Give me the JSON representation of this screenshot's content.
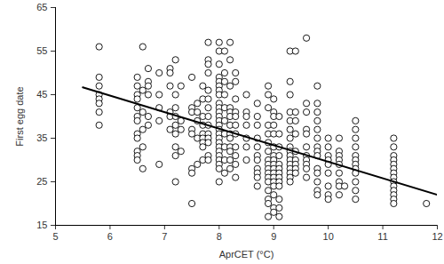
{
  "chart_data": {
    "type": "scatter",
    "x_label": "AprCET (°C)",
    "y_label": "First egg date",
    "xlim": [
      5,
      12
    ],
    "xticks": [
      5,
      6,
      7,
      8,
      9,
      10,
      11,
      12
    ],
    "ylim": [
      15,
      65
    ],
    "yticks": [
      15,
      25,
      35,
      45,
      55,
      65
    ],
    "grid": false,
    "series": [
      {
        "type": "scatter",
        "marker": "open_circle",
        "color": "#000000",
        "x": [
          5.8,
          6.5,
          6.6,
          6.7,
          6.9,
          7.1,
          7.2,
          7.3,
          7.5,
          7.6,
          7.7,
          7.8,
          8.0,
          8.1,
          8.2,
          8.3,
          8.5,
          8.7,
          8.9,
          9.0,
          9.1,
          9.3,
          9.4,
          9.6,
          9.8,
          10.0,
          10.2,
          10.3,
          10.5,
          11.2,
          11.8
        ],
        "values": [
          [
            56,
            49,
            47,
            45,
            44,
            43,
            41,
            38
          ],
          [
            49,
            47,
            45,
            44,
            42,
            40,
            39,
            36,
            35,
            32,
            31,
            30
          ],
          [
            56,
            46,
            41,
            37,
            33,
            28
          ],
          [
            51,
            48,
            47,
            45,
            40,
            38
          ],
          [
            50,
            45,
            42,
            39,
            29
          ],
          [
            51,
            50,
            47,
            41,
            40,
            37
          ],
          [
            53,
            45,
            42,
            40,
            38,
            36,
            33,
            31,
            25
          ],
          [
            47,
            39,
            37,
            32
          ],
          [
            49,
            42,
            41,
            37,
            36,
            28,
            27,
            20
          ],
          [
            43,
            41,
            39,
            35,
            29
          ],
          [
            47,
            44,
            40,
            38,
            36,
            35,
            34,
            33,
            30
          ],
          [
            57,
            53,
            52,
            50,
            46,
            44,
            42,
            40,
            38,
            36,
            35,
            34,
            31,
            30
          ],
          [
            57,
            55,
            52,
            49,
            48,
            47,
            46,
            45,
            43,
            42,
            41,
            40,
            39,
            38,
            37,
            36,
            35,
            34,
            33,
            32,
            31,
            30,
            29,
            28,
            25
          ],
          [
            55,
            50,
            48,
            45,
            42,
            39,
            36,
            33,
            30,
            27
          ],
          [
            57,
            53,
            47,
            42,
            41,
            40,
            38,
            36,
            35,
            33,
            32,
            30,
            28
          ],
          [
            50,
            48,
            44,
            41,
            40,
            38,
            36,
            33,
            31,
            29,
            26
          ],
          [
            45,
            41,
            40,
            38,
            35,
            33,
            30
          ],
          [
            43,
            40,
            38,
            35,
            33,
            31,
            30,
            28,
            27,
            26,
            24
          ],
          [
            47,
            45,
            42,
            38,
            36,
            34,
            32,
            30,
            29,
            28,
            27,
            26,
            25,
            23,
            21,
            20,
            17
          ],
          [
            44,
            41,
            40,
            38,
            36,
            33,
            31,
            30,
            29,
            28,
            27,
            26,
            25,
            24,
            22,
            19,
            18
          ],
          [
            40,
            36,
            33,
            31,
            29,
            28,
            27,
            26,
            25,
            24,
            21,
            19,
            17
          ],
          [
            55,
            48,
            45,
            41,
            39,
            37,
            35,
            33,
            32,
            31,
            30,
            29,
            28,
            27,
            26,
            25
          ],
          [
            55,
            41,
            39,
            36,
            32,
            30,
            29,
            28,
            27
          ],
          [
            58,
            43,
            41,
            37,
            36,
            33,
            31,
            30,
            29,
            28,
            26
          ],
          [
            47,
            43,
            41,
            39,
            37,
            35,
            33,
            32,
            31,
            28,
            27,
            25,
            23,
            22
          ],
          [
            35,
            33,
            31,
            30,
            29,
            27,
            24,
            22,
            21
          ],
          [
            35,
            32,
            31,
            30,
            29,
            27,
            25,
            24,
            22
          ],
          [
            24
          ],
          [
            39,
            37,
            35,
            33,
            31,
            30,
            29,
            28,
            27,
            25,
            23,
            21
          ],
          [
            35,
            33,
            31,
            30,
            29,
            28,
            27,
            26,
            25,
            24,
            23,
            22,
            21,
            20
          ],
          [
            20
          ]
        ]
      },
      {
        "type": "line",
        "line_style": "solid",
        "color": "#000000",
        "x": [
          5.5,
          12
        ],
        "values": [
          46.7,
          22
        ]
      }
    ]
  }
}
